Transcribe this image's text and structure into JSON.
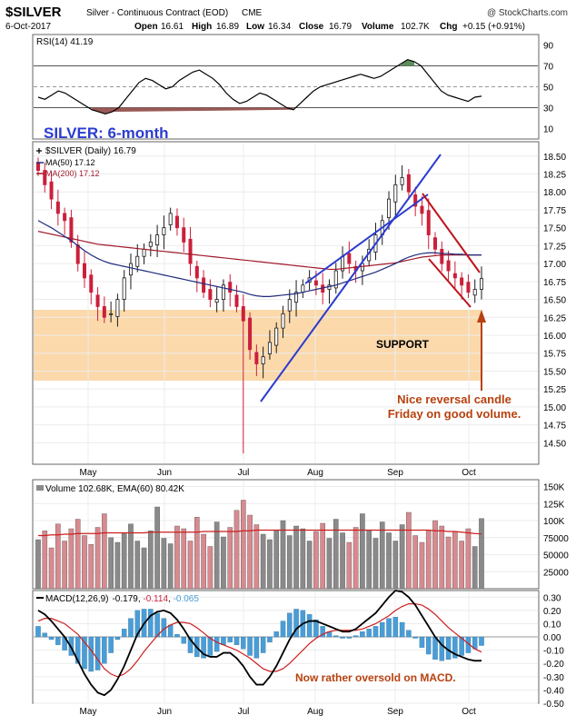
{
  "header": {
    "symbol": "$SILVER",
    "description": "Silver - Continuous Contract (EOD)",
    "exchange": "CME",
    "date": "6-Oct-2017",
    "open_label": "Open",
    "open": "16.61",
    "high_label": "High",
    "high": "16.89",
    "low_label": "Low",
    "low": "16.34",
    "close_label": "Close",
    "close": "16.79",
    "volume_label": "Volume",
    "volume": "102.7K",
    "chg_label": "Chg",
    "chg": "+0.15 (+0.91%)",
    "watermark": "@ StockCharts.com"
  },
  "chart_data": [
    {
      "type": "line",
      "panel": "rsi",
      "legend": "RSI(14) 41.19",
      "ylim": [
        0,
        100
      ],
      "ticks": [
        "90",
        "70",
        "50",
        "30",
        "10"
      ],
      "tick_values": [
        90,
        70,
        50,
        30,
        10
      ],
      "reference_lines": [
        70,
        50,
        30
      ],
      "series": [
        {
          "name": "RSI(14)",
          "values": [
            40,
            38,
            42,
            46,
            44,
            40,
            36,
            32,
            28,
            26,
            24,
            26,
            30,
            38,
            46,
            54,
            58,
            56,
            52,
            48,
            50,
            56,
            60,
            64,
            66,
            62,
            58,
            52,
            44,
            38,
            34,
            36,
            40,
            44,
            42,
            38,
            34,
            30,
            28,
            34,
            40,
            46,
            50,
            52,
            54,
            56,
            58,
            60,
            62,
            60,
            58,
            60,
            64,
            68,
            72,
            76,
            74,
            70,
            62,
            54,
            46,
            42,
            40,
            38,
            36,
            40,
            41
          ]
        }
      ]
    },
    {
      "type": "candlestick",
      "panel": "price",
      "legend_price": "$SILVER (Daily) 16.79",
      "legend_ma50": "MA(50) 17.12",
      "legend_ma200": "MA(200) 17.12",
      "ylim": [
        14.2,
        18.7
      ],
      "yticks": [
        "18.50",
        "18.25",
        "18.00",
        "17.75",
        "17.50",
        "17.25",
        "17.00",
        "16.75",
        "16.50",
        "16.25",
        "16.00",
        "15.75",
        "15.50",
        "15.25",
        "15.00",
        "14.75",
        "14.50"
      ],
      "ytick_values": [
        18.5,
        18.25,
        18.0,
        17.75,
        17.5,
        17.25,
        17.0,
        16.75,
        16.5,
        16.25,
        16.0,
        15.75,
        15.5,
        15.25,
        15.0,
        14.75,
        14.5
      ],
      "x_months": [
        "May",
        "Jun",
        "Jul",
        "Aug",
        "Sep",
        "Oct"
      ],
      "closes": [
        18.3,
        18.1,
        17.9,
        17.7,
        17.6,
        17.3,
        17.0,
        16.8,
        16.6,
        16.4,
        16.25,
        16.3,
        16.5,
        16.8,
        17.0,
        17.1,
        17.2,
        17.3,
        17.4,
        17.5,
        17.7,
        17.5,
        17.3,
        17.0,
        16.8,
        16.6,
        16.5,
        16.5,
        16.7,
        16.6,
        16.4,
        16.2,
        15.8,
        15.6,
        15.7,
        15.9,
        16.1,
        16.3,
        16.5,
        16.6,
        16.7,
        16.8,
        16.7,
        16.6,
        16.7,
        16.9,
        17.1,
        17.0,
        16.9,
        17.0,
        17.2,
        17.4,
        17.6,
        17.9,
        18.1,
        18.2,
        18.0,
        17.8,
        17.7,
        17.4,
        17.2,
        17.0,
        16.9,
        16.8,
        16.7,
        16.6,
        16.64,
        16.79
      ],
      "ma50": [
        17.6,
        17.55,
        17.5,
        17.44,
        17.38,
        17.32,
        17.25,
        17.18,
        17.12,
        17.07,
        17.03,
        17.0,
        16.98,
        16.96,
        16.94,
        16.92,
        16.9,
        16.88,
        16.86,
        16.84,
        16.82,
        16.8,
        16.78,
        16.76,
        16.74,
        16.72,
        16.7,
        16.68,
        16.66,
        16.64,
        16.62,
        16.6,
        16.57,
        16.55,
        16.54,
        16.54,
        16.55,
        16.56,
        16.57,
        16.58,
        16.6,
        16.62,
        16.64,
        16.66,
        16.68,
        16.7,
        16.73,
        16.76,
        16.79,
        16.82,
        16.85,
        16.88,
        16.92,
        16.96,
        17.0,
        17.05,
        17.09,
        17.12,
        17.14,
        17.15,
        17.15,
        17.14,
        17.14,
        17.13,
        17.13,
        17.12,
        17.12,
        17.12
      ],
      "ma200": [
        17.45,
        17.43,
        17.41,
        17.39,
        17.37,
        17.35,
        17.33,
        17.31,
        17.29,
        17.27,
        17.26,
        17.25,
        17.24,
        17.23,
        17.22,
        17.21,
        17.2,
        17.19,
        17.18,
        17.17,
        17.16,
        17.15,
        17.14,
        17.13,
        17.12,
        17.11,
        17.1,
        17.09,
        17.08,
        17.07,
        17.06,
        17.05,
        17.04,
        17.03,
        17.02,
        17.01,
        17.0,
        16.99,
        16.98,
        16.97,
        16.96,
        16.95,
        16.94,
        16.93,
        16.92,
        16.92,
        16.93,
        16.94,
        16.95,
        16.96,
        16.97,
        16.98,
        16.99,
        17.0,
        17.01,
        17.03,
        17.05,
        17.07,
        17.09,
        17.1,
        17.11,
        17.12,
        17.12,
        17.12,
        17.12,
        17.12,
        17.12,
        17.12
      ]
    },
    {
      "type": "bar",
      "panel": "volume",
      "legend": "Volume 102.68K, EMA(60) 80.42K",
      "ylim": [
        0,
        160000
      ],
      "yticks": [
        "150K",
        "125K",
        "100K",
        "75000",
        "50000",
        "25000"
      ],
      "ytick_values": [
        150000,
        125000,
        100000,
        75000,
        50000,
        25000
      ],
      "values": [
        72,
        85,
        60,
        95,
        70,
        88,
        102,
        78,
        65,
        90,
        110,
        75,
        68,
        82,
        95,
        70,
        60,
        85,
        120,
        74,
        66,
        92,
        88,
        70,
        105,
        80,
        62,
        98,
        76,
        90,
        115,
        130,
        108,
        94,
        80,
        72,
        86,
        100,
        78,
        92,
        88,
        70,
        84,
        96,
        74,
        102,
        82,
        68,
        90,
        110,
        86,
        74,
        98,
        82,
        70,
        94,
        112,
        78,
        68,
        86,
        100,
        92,
        76,
        84,
        70,
        88,
        62,
        103
      ],
      "ema60": [
        78,
        78,
        79,
        79,
        80,
        80,
        81,
        81,
        81,
        81,
        82,
        82,
        82,
        82,
        82,
        82,
        82,
        83,
        83,
        83,
        83,
        83,
        83,
        83,
        83,
        84,
        84,
        84,
        84,
        84,
        84,
        85,
        85,
        86,
        86,
        86,
        86,
        86,
        86,
        86,
        86,
        86,
        86,
        86,
        86,
        86,
        86,
        86,
        86,
        86,
        86,
        86,
        86,
        86,
        86,
        86,
        86,
        86,
        86,
        86,
        85,
        85,
        84,
        84,
        83,
        82,
        81,
        80.42
      ]
    },
    {
      "type": "line",
      "panel": "macd",
      "legend_macd": "MACD(12,26,9)",
      "legend_values": [
        "-0.179",
        "-0.114",
        "-0.065"
      ],
      "ylim": [
        -0.5,
        0.35
      ],
      "yticks": [
        "0.30",
        "0.20",
        "0.10",
        "0.00",
        "-0.10",
        "-0.20",
        "-0.30",
        "-0.40",
        "-0.50"
      ],
      "ytick_values": [
        0.3,
        0.2,
        0.1,
        0.0,
        -0.1,
        -0.2,
        -0.3,
        -0.4,
        -0.5
      ],
      "macd": [
        0.2,
        0.17,
        0.12,
        0.06,
        0.0,
        -0.08,
        -0.18,
        -0.28,
        -0.36,
        -0.42,
        -0.44,
        -0.4,
        -0.32,
        -0.22,
        -0.1,
        0.02,
        0.1,
        0.16,
        0.19,
        0.2,
        0.18,
        0.13,
        0.06,
        -0.02,
        -0.08,
        -0.13,
        -0.15,
        -0.15,
        -0.12,
        -0.12,
        -0.16,
        -0.22,
        -0.3,
        -0.36,
        -0.36,
        -0.3,
        -0.22,
        -0.12,
        -0.02,
        0.06,
        0.1,
        0.12,
        0.12,
        0.1,
        0.08,
        0.06,
        0.04,
        0.04,
        0.06,
        0.1,
        0.14,
        0.18,
        0.24,
        0.3,
        0.35,
        0.34,
        0.3,
        0.24,
        0.16,
        0.08,
        0.0,
        -0.06,
        -0.1,
        -0.13,
        -0.15,
        -0.17,
        -0.18,
        -0.179
      ],
      "signal": [
        0.12,
        0.14,
        0.14,
        0.12,
        0.1,
        0.06,
        0.02,
        -0.04,
        -0.1,
        -0.17,
        -0.24,
        -0.28,
        -0.3,
        -0.28,
        -0.24,
        -0.18,
        -0.11,
        -0.05,
        0.01,
        0.06,
        0.09,
        0.11,
        0.11,
        0.1,
        0.07,
        0.03,
        -0.01,
        -0.04,
        -0.06,
        -0.08,
        -0.1,
        -0.13,
        -0.16,
        -0.2,
        -0.24,
        -0.26,
        -0.26,
        -0.24,
        -0.2,
        -0.15,
        -0.1,
        -0.05,
        -0.01,
        0.02,
        0.04,
        0.05,
        0.05,
        0.05,
        0.05,
        0.06,
        0.08,
        0.1,
        0.13,
        0.16,
        0.2,
        0.23,
        0.25,
        0.25,
        0.24,
        0.21,
        0.17,
        0.12,
        0.07,
        0.03,
        -0.01,
        -0.05,
        -0.09,
        -0.114
      ]
    }
  ],
  "annotations": {
    "title": "SILVER: 6-month",
    "support_label": "SUPPORT",
    "reversal_note_line1": "Nice reversal candle",
    "reversal_note_line2": "Friday on good volume.",
    "macd_note": "Now rather oversold on MACD."
  },
  "colors": {
    "up_candle": "#1a1a1a",
    "down_candle": "#cc1f3a",
    "ma50": "#1f2a7a",
    "ma200": "#a0192a",
    "channel": "#2b3ccf",
    "downtrend": "#c0121c",
    "support_band": "#fbd9ab",
    "note_text": "#b8410f",
    "title_text": "#2b3ccf",
    "volume_up": "#8a8a8a",
    "volume_down": "#d98a8f",
    "histogram": "#4a9dd6",
    "rsi_overbought_fill": "#5e8c5e",
    "rsi_oversold_fill": "#9a5a56"
  }
}
